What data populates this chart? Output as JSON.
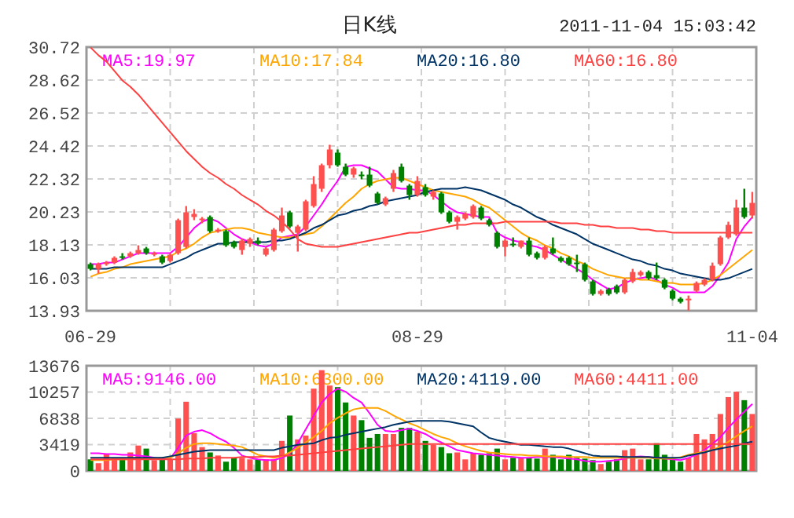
{
  "chart_data": [
    {
      "type": "candlestick",
      "title": "日K线",
      "subtitle": "2011-11-04 15:03:42",
      "categories": [
        "06-29",
        null,
        null,
        null,
        null,
        null,
        null,
        null,
        null,
        null,
        null,
        null,
        null,
        null,
        null,
        null,
        null,
        null,
        null,
        null,
        null,
        null,
        null,
        null,
        null,
        null,
        null,
        null,
        null,
        null,
        null,
        null,
        null,
        null,
        null,
        null,
        null,
        null,
        null,
        null,
        null,
        "08-29",
        null,
        null,
        null,
        null,
        null,
        null,
        null,
        null,
        null,
        null,
        null,
        null,
        null,
        null,
        null,
        null,
        null,
        null,
        null,
        null,
        null,
        null,
        null,
        null,
        null,
        null,
        null,
        null,
        null,
        null,
        null,
        null,
        null,
        null,
        null,
        null,
        null,
        null,
        null,
        null,
        null,
        "11-04"
      ],
      "ohlc": [
        [
          16.9,
          17.0,
          16.5,
          16.6
        ],
        [
          16.6,
          17.0,
          16.3,
          16.9
        ],
        [
          16.9,
          17.1,
          16.8,
          17.0
        ],
        [
          17.0,
          17.4,
          16.9,
          17.3
        ],
        [
          17.4,
          17.6,
          17.2,
          17.3
        ],
        [
          17.4,
          17.7,
          17.3,
          17.6
        ],
        [
          17.6,
          18.1,
          17.5,
          17.8
        ],
        [
          17.9,
          18.0,
          17.5,
          17.6
        ],
        [
          17.5,
          17.7,
          17.4,
          17.6
        ],
        [
          17.4,
          17.5,
          16.9,
          17.0
        ],
        [
          17.1,
          17.6,
          17.0,
          17.5
        ],
        [
          17.6,
          19.8,
          17.5,
          19.7
        ],
        [
          18.0,
          20.6,
          17.9,
          20.2
        ],
        [
          19.9,
          20.4,
          19.7,
          20.1
        ],
        [
          19.7,
          19.9,
          19.5,
          19.8
        ],
        [
          19.9,
          20.0,
          18.9,
          19.0
        ],
        [
          19.0,
          19.2,
          18.9,
          19.1
        ],
        [
          19.0,
          19.1,
          18.0,
          18.1
        ],
        [
          18.3,
          18.4,
          17.9,
          18.0
        ],
        [
          17.8,
          18.5,
          17.5,
          18.4
        ],
        [
          18.2,
          18.6,
          18.0,
          18.5
        ],
        [
          18.4,
          18.6,
          18.1,
          18.2
        ],
        [
          17.5,
          18.0,
          17.4,
          17.9
        ],
        [
          17.8,
          19.2,
          17.7,
          19.1
        ],
        [
          19.0,
          20.5,
          18.9,
          20.0
        ],
        [
          20.2,
          20.3,
          19.2,
          19.3
        ],
        [
          18.9,
          19.4,
          17.7,
          19.3
        ],
        [
          19.1,
          21.0,
          19.0,
          20.9
        ],
        [
          20.6,
          22.5,
          20.5,
          22.0
        ],
        [
          21.7,
          23.3,
          21.5,
          23.2
        ],
        [
          23.2,
          24.5,
          23.0,
          24.2
        ],
        [
          24.0,
          24.2,
          23.1,
          23.2
        ],
        [
          23.1,
          23.3,
          22.5,
          22.6
        ],
        [
          22.6,
          23.1,
          22.4,
          23.0
        ],
        [
          22.6,
          22.8,
          22.3,
          22.5
        ],
        [
          22.6,
          23.1,
          21.8,
          21.9
        ],
        [
          21.4,
          21.5,
          20.7,
          20.8
        ],
        [
          20.7,
          21.2,
          20.6,
          21.1
        ],
        [
          21.7,
          22.9,
          21.5,
          22.7
        ],
        [
          23.1,
          23.3,
          22.1,
          22.2
        ],
        [
          21.9,
          22.0,
          21.0,
          21.3
        ],
        [
          21.3,
          22.5,
          21.2,
          22.2
        ],
        [
          21.8,
          22.0,
          21.2,
          21.3
        ],
        [
          21.2,
          21.6,
          21.0,
          21.5
        ],
        [
          21.4,
          21.5,
          20.1,
          20.2
        ],
        [
          20.2,
          20.3,
          19.5,
          19.6
        ],
        [
          19.6,
          20.0,
          19.1,
          19.9
        ],
        [
          19.8,
          20.2,
          19.7,
          20.1
        ],
        [
          19.9,
          20.7,
          19.8,
          20.6
        ],
        [
          20.5,
          20.6,
          19.7,
          19.8
        ],
        [
          19.7,
          19.8,
          19.3,
          19.4
        ],
        [
          18.9,
          19.0,
          17.9,
          18.0
        ],
        [
          18.0,
          18.5,
          17.4,
          18.4
        ],
        [
          18.2,
          18.6,
          18.0,
          18.1
        ],
        [
          18.0,
          18.4,
          17.9,
          18.4
        ],
        [
          18.4,
          18.6,
          17.4,
          17.5
        ],
        [
          17.6,
          17.7,
          17.2,
          17.3
        ],
        [
          17.3,
          18.1,
          17.2,
          18.0
        ],
        [
          17.9,
          18.6,
          17.5,
          17.6
        ],
        [
          17.3,
          17.4,
          17.0,
          17.1
        ],
        [
          17.3,
          17.4,
          16.8,
          16.9
        ],
        [
          17.0,
          17.5,
          16.4,
          16.9
        ],
        [
          16.9,
          17.0,
          15.8,
          15.9
        ],
        [
          15.8,
          15.9,
          14.9,
          15.0
        ],
        [
          15.0,
          15.3,
          14.9,
          15.2
        ],
        [
          15.3,
          15.4,
          14.9,
          15.0
        ],
        [
          15.5,
          15.6,
          15.0,
          15.1
        ],
        [
          15.1,
          16.0,
          15.0,
          15.9
        ],
        [
          15.8,
          16.6,
          15.7,
          16.4
        ],
        [
          16.2,
          16.5,
          16.1,
          16.4
        ],
        [
          16.4,
          16.5,
          15.9,
          16.0
        ],
        [
          16.2,
          17.0,
          15.9,
          16.0
        ],
        [
          15.9,
          16.0,
          15.3,
          15.4
        ],
        [
          15.2,
          15.3,
          14.6,
          14.7
        ],
        [
          14.7,
          14.8,
          14.4,
          14.5
        ],
        [
          14.6,
          14.9,
          13.95,
          14.7
        ],
        [
          15.2,
          15.8,
          15.1,
          15.7
        ],
        [
          15.6,
          16.0,
          15.5,
          15.9
        ],
        [
          15.9,
          17.0,
          15.8,
          16.8
        ],
        [
          16.9,
          18.7,
          16.8,
          18.6
        ],
        [
          18.6,
          19.6,
          18.5,
          19.4
        ],
        [
          18.8,
          21.0,
          18.7,
          20.5
        ],
        [
          20.5,
          21.7,
          19.8,
          19.9
        ],
        [
          20.0,
          21.5,
          19.8,
          20.8
        ]
      ],
      "colors": [
        "#008000",
        "#ff5050",
        "#ff5050",
        "#ff5050",
        "#008000",
        "#ff5050",
        "#ff5050",
        "#008000",
        "#ff5050",
        "#008000",
        "#ff5050",
        "#ff5050",
        "#ff5050",
        "#ff5050",
        "#ff5050",
        "#008000",
        "#ff5050",
        "#008000",
        "#008000",
        "#ff5050",
        "#ff5050",
        "#008000",
        "#ff5050",
        "#ff5050",
        "#ff5050",
        "#008000",
        "#ff5050",
        "#ff5050",
        "#ff5050",
        "#ff5050",
        "#ff5050",
        "#008000",
        "#008000",
        "#ff5050",
        "#008000",
        "#008000",
        "#008000",
        "#ff5050",
        "#ff5050",
        "#008000",
        "#008000",
        "#ff5050",
        "#008000",
        "#ff5050",
        "#008000",
        "#008000",
        "#ff5050",
        "#ff5050",
        "#ff5050",
        "#008000",
        "#008000",
        "#008000",
        "#ff5050",
        "#008000",
        "#ff5050",
        "#008000",
        "#008000",
        "#ff5050",
        "#008000",
        "#008000",
        "#008000",
        "#008000",
        "#008000",
        "#008000",
        "#ff5050",
        "#008000",
        "#008000",
        "#ff5050",
        "#ff5050",
        "#ff5050",
        "#008000",
        "#008000",
        "#008000",
        "#008000",
        "#008000",
        "#ff5050",
        "#ff5050",
        "#ff5050",
        "#ff5050",
        "#ff5050",
        "#ff5050",
        "#ff5050",
        "#008000",
        "#ff5050"
      ],
      "series": [
        {
          "name": "MA5:19.97",
          "type": "line",
          "color": "#ff00ff",
          "values": [
            16.9,
            16.9,
            17.0,
            17.0,
            17.2,
            17.4,
            17.6,
            17.6,
            17.6,
            17.6,
            17.6,
            18.0,
            18.6,
            19.2,
            19.6,
            19.8,
            19.6,
            19.2,
            18.8,
            18.5,
            18.3,
            18.1,
            18.0,
            18.2,
            18.6,
            18.7,
            18.8,
            19.3,
            20.0,
            20.7,
            21.5,
            22.2,
            23.1,
            23.2,
            23.2,
            23.0,
            22.8,
            22.3,
            21.8,
            21.7,
            21.7,
            21.6,
            21.6,
            21.3,
            20.9,
            20.5,
            20.2,
            20.1,
            20.0,
            19.9,
            19.9,
            18.9,
            18.6,
            18.4,
            18.3,
            18.1,
            18.0,
            17.8,
            17.5,
            17.2,
            16.9,
            16.6,
            16.3,
            15.9,
            15.6,
            15.3,
            15.4,
            15.7,
            15.9,
            16.0,
            16.1,
            15.9,
            15.6,
            15.4,
            15.1,
            15.1,
            15.1,
            15.1,
            15.5,
            16.2,
            17.0,
            18.5,
            19.3,
            19.9
          ]
        },
        {
          "name": "MA10:17.84",
          "type": "line",
          "color": "#ffa500",
          "values": [
            16.1,
            16.3,
            16.4,
            16.6,
            16.7,
            16.9,
            17.0,
            17.1,
            17.2,
            17.3,
            17.4,
            17.7,
            17.9,
            18.2,
            18.6,
            18.9,
            19.0,
            19.1,
            19.2,
            19.2,
            19.1,
            18.9,
            18.8,
            18.7,
            18.6,
            18.6,
            18.7,
            18.8,
            18.9,
            19.3,
            19.8,
            20.3,
            20.8,
            21.2,
            21.7,
            22.0,
            22.2,
            22.3,
            22.4,
            22.4,
            22.2,
            22.0,
            21.8,
            21.6,
            21.5,
            21.4,
            21.3,
            21.2,
            21.0,
            20.7,
            20.5,
            20.1,
            19.7,
            19.3,
            18.9,
            18.6,
            18.4,
            18.1,
            17.9,
            17.6,
            17.4,
            17.1,
            16.9,
            16.6,
            16.4,
            16.2,
            16.1,
            16.0,
            16.0,
            15.9,
            15.9,
            15.8,
            15.7,
            15.7,
            15.6,
            15.6,
            15.6,
            15.7,
            15.9,
            16.2,
            16.6,
            17.0,
            17.4,
            17.8
          ]
        },
        {
          "name": "MA20:16.80",
          "type": "line",
          "color": "#003366",
          "values": [
            16.6,
            16.6,
            16.6,
            16.7,
            16.7,
            16.7,
            16.7,
            16.7,
            16.7,
            16.7,
            16.9,
            17.1,
            17.3,
            17.6,
            17.8,
            18.0,
            18.2,
            18.2,
            18.3,
            18.3,
            18.3,
            18.3,
            18.3,
            18.4,
            18.4,
            18.5,
            18.7,
            18.9,
            19.2,
            19.4,
            19.7,
            20.0,
            20.1,
            20.3,
            20.4,
            20.6,
            20.7,
            20.9,
            21.0,
            21.1,
            21.2,
            21.3,
            21.5,
            21.6,
            21.7,
            21.7,
            21.7,
            21.8,
            21.7,
            21.6,
            21.4,
            21.2,
            21.0,
            20.7,
            20.5,
            20.2,
            19.9,
            19.7,
            19.4,
            19.2,
            19.0,
            18.8,
            18.5,
            18.2,
            18.0,
            17.8,
            17.6,
            17.4,
            17.2,
            17.1,
            16.9,
            16.8,
            16.6,
            16.5,
            16.3,
            16.2,
            16.1,
            16.0,
            15.9,
            15.9,
            16.0,
            16.2,
            16.4,
            16.6
          ]
        },
        {
          "name": "MA60:16.80",
          "type": "line",
          "color": "#ff4040",
          "values": [
            30.7,
            30.2,
            29.8,
            29.2,
            28.6,
            28.2,
            27.7,
            27.1,
            26.5,
            25.9,
            25.3,
            24.7,
            24.1,
            23.6,
            23.1,
            22.7,
            22.4,
            22.0,
            21.7,
            21.3,
            21.0,
            20.7,
            20.3,
            20.0,
            19.6,
            19.1,
            18.5,
            18.2,
            18.1,
            18.0,
            18.0,
            18.0,
            18.1,
            18.2,
            18.3,
            18.4,
            18.5,
            18.6,
            18.7,
            18.8,
            18.9,
            18.9,
            19.0,
            19.1,
            19.2,
            19.3,
            19.4,
            19.4,
            19.5,
            19.5,
            19.5,
            19.5,
            19.6,
            19.6,
            19.6,
            19.6,
            19.6,
            19.6,
            19.6,
            19.5,
            19.5,
            19.5,
            19.4,
            19.4,
            19.3,
            19.3,
            19.2,
            19.2,
            19.2,
            19.1,
            19.1,
            19.0,
            19.0,
            18.9,
            18.9,
            18.9,
            18.9,
            18.9,
            18.9,
            18.9,
            18.9,
            18.9,
            18.9,
            18.9
          ]
        }
      ],
      "ylim": [
        13.93,
        30.72
      ],
      "yticks": [
        13.93,
        16.03,
        18.13,
        20.23,
        22.32,
        24.42,
        26.52,
        28.62,
        30.72
      ],
      "grid": true,
      "legend": "top"
    },
    {
      "type": "bar",
      "categories": [
        null,
        null,
        null,
        null,
        null,
        null,
        null,
        null,
        null,
        null,
        null,
        null,
        null,
        null,
        null,
        null,
        null,
        null,
        null,
        null,
        null,
        null,
        null,
        null,
        null,
        null,
        null,
        null,
        null,
        null,
        null,
        null,
        null,
        null,
        null,
        null,
        null,
        null,
        null,
        null,
        null,
        null,
        null,
        null,
        null,
        null,
        null,
        null,
        null,
        null,
        null,
        null,
        null,
        null,
        null,
        null,
        null,
        null,
        null,
        null,
        null,
        null,
        null,
        null,
        null,
        null,
        null,
        null,
        null,
        null,
        null,
        null,
        null,
        null,
        null,
        null,
        null,
        null,
        null,
        null,
        null,
        null,
        null,
        null
      ],
      "series": [
        {
          "type": "bar",
          "colors": [
            "#008000",
            "#ff5050",
            "#ff5050",
            "#ff5050",
            "#008000",
            "#ff5050",
            "#ff5050",
            "#008000",
            "#ff5050",
            "#008000",
            "#ff5050",
            "#ff5050",
            "#ff5050",
            "#ff5050",
            "#ff5050",
            "#008000",
            "#ff5050",
            "#008000",
            "#008000",
            "#ff5050",
            "#ff5050",
            "#008000",
            "#ff5050",
            "#ff5050",
            "#ff5050",
            "#008000",
            "#ff5050",
            "#ff5050",
            "#ff5050",
            "#ff5050",
            "#ff5050",
            "#008000",
            "#008000",
            "#ff5050",
            "#008000",
            "#008000",
            "#008000",
            "#ff5050",
            "#ff5050",
            "#008000",
            "#008000",
            "#ff5050",
            "#008000",
            "#ff5050",
            "#008000",
            "#008000",
            "#ff5050",
            "#ff5050",
            "#ff5050",
            "#008000",
            "#008000",
            "#008000",
            "#ff5050",
            "#008000",
            "#ff5050",
            "#008000",
            "#008000",
            "#ff5050",
            "#008000",
            "#008000",
            "#008000",
            "#008000",
            "#008000",
            "#008000",
            "#ff5050",
            "#008000",
            "#008000",
            "#ff5050",
            "#ff5050",
            "#ff5050",
            "#008000",
            "#008000",
            "#008000",
            "#008000",
            "#008000",
            "#ff5050",
            "#ff5050",
            "#ff5050",
            "#ff5050",
            "#ff5050",
            "#ff5050",
            "#ff5050",
            "#008000",
            "#ff5050"
          ],
          "values": [
            1500,
            1000,
            2200,
            1700,
            1700,
            2400,
            3300,
            2900,
            1400,
            1500,
            1500,
            6800,
            9000,
            4900,
            3100,
            2400,
            2000,
            1200,
            1700,
            1700,
            1500,
            1500,
            1500,
            1500,
            3900,
            7200,
            4100,
            4600,
            10700,
            13100,
            11100,
            10900,
            8900,
            7200,
            6600,
            4300,
            4800,
            4800,
            4800,
            5600,
            5600,
            5100,
            3900,
            3400,
            3100,
            2300,
            2400,
            1500,
            2300,
            2100,
            2300,
            2900,
            1500,
            1700,
            1700,
            1700,
            1600,
            2900,
            2100,
            1500,
            2100,
            1700,
            1600,
            1400,
            900,
            1200,
            1500,
            2700,
            2900,
            1500,
            1500,
            3600,
            2100,
            1500,
            1200,
            1700,
            4800,
            4100,
            4800,
            7400,
            9600,
            10300,
            9200,
            7400
          ]
        },
        {
          "name": "MA5:9146.00",
          "type": "line",
          "color": "#ff00ff",
          "values": [
            2300,
            2300,
            2200,
            2200,
            2100,
            2100,
            2000,
            1900,
            1700,
            1500,
            1600,
            3000,
            4600,
            5100,
            5300,
            4900,
            4300,
            3800,
            3000,
            2000,
            1700,
            1500,
            1400,
            1400,
            1700,
            2200,
            3600,
            5400,
            7200,
            8900,
            10000,
            10700,
            10300,
            9500,
            8900,
            7500,
            6000,
            5200,
            5100,
            5300,
            5500,
            5200,
            4800,
            4200,
            3700,
            3200,
            2700,
            2500,
            2300,
            2200,
            2100,
            2000,
            1900,
            1800,
            1700,
            1700,
            1800,
            1800,
            1800,
            1700,
            1600,
            1500,
            1300,
            1200,
            1200,
            1300,
            1400,
            1600,
            1800,
            1900,
            1800,
            1700,
            1600,
            1500,
            1400,
            1700,
            2100,
            2700,
            3500,
            4400,
            5600,
            6700,
            7700,
            8700
          ]
        },
        {
          "name": "MA10:6300.00",
          "type": "line",
          "color": "#ffa500",
          "values": [
            1400,
            1400,
            1400,
            1500,
            1500,
            1500,
            1600,
            1600,
            1600,
            1700,
            1700,
            2300,
            3000,
            3500,
            3600,
            3600,
            3500,
            3400,
            3300,
            3100,
            2600,
            2100,
            1900,
            1700,
            1900,
            2400,
            3000,
            3700,
            4400,
            5200,
            6200,
            6900,
            7500,
            8000,
            8200,
            8200,
            8200,
            7800,
            7200,
            6700,
            6200,
            5800,
            5300,
            4800,
            4400,
            4100,
            3600,
            3200,
            2900,
            2600,
            2400,
            2300,
            2200,
            2100,
            2100,
            2000,
            2000,
            1900,
            1900,
            1900,
            1800,
            1800,
            1800,
            1700,
            1700,
            1700,
            1700,
            1700,
            1700,
            1700,
            1700,
            1600,
            1600,
            1600,
            1800,
            2100,
            2300,
            2500,
            2700,
            3200,
            3800,
            4500,
            5200,
            5800
          ]
        },
        {
          "name": "MA20:4119.00",
          "type": "line",
          "color": "#003366",
          "values": [
            1700,
            1700,
            1700,
            1700,
            1700,
            1700,
            1700,
            1700,
            1700,
            1700,
            1900,
            2100,
            2300,
            2500,
            2600,
            2700,
            2700,
            2700,
            2700,
            2700,
            2700,
            2700,
            2700,
            2700,
            3000,
            3200,
            3400,
            3500,
            3600,
            4000,
            4300,
            4400,
            4700,
            4900,
            5100,
            5300,
            5500,
            5700,
            6000,
            6200,
            6400,
            6500,
            6500,
            6500,
            6500,
            6400,
            6200,
            6000,
            5800,
            5000,
            4300,
            4000,
            3800,
            3600,
            3400,
            3400,
            3300,
            3200,
            3100,
            3100,
            2900,
            2600,
            2300,
            2000,
            1900,
            1900,
            1900,
            1800,
            1800,
            1800,
            1800,
            1700,
            1700,
            1700,
            1700,
            2000,
            2200,
            2400,
            2700,
            2900,
            3100,
            3300,
            3600,
            3800
          ]
        },
        {
          "name": "MA60:4411.00",
          "type": "line",
          "color": "#ff4040",
          "values": [
            1500,
            1500,
            1500,
            1500,
            1500,
            1500,
            1500,
            1500,
            1500,
            1500,
            1500,
            1500,
            1600,
            1600,
            1600,
            1700,
            1700,
            1700,
            1700,
            1800,
            1800,
            1800,
            1900,
            1900,
            2000,
            2000,
            2100,
            2200,
            2300,
            2400,
            2500,
            2600,
            2700,
            2800,
            2900,
            3000,
            3100,
            3200,
            3300,
            3400,
            3500,
            3500,
            3500,
            3500,
            3500,
            3500,
            3500,
            3500,
            3500,
            3500,
            3500,
            3500,
            3500,
            3500,
            3500,
            3500,
            3500,
            3500,
            3500,
            3500,
            3500,
            3500,
            3500,
            3500,
            3500,
            3500,
            3500,
            3500,
            3500,
            3500,
            3500,
            3500,
            3500,
            3500,
            3500,
            3500,
            3500,
            3500,
            3500,
            3500,
            3500,
            3500,
            3500,
            3500
          ]
        }
      ],
      "ylim": [
        0,
        13676
      ],
      "yticks": [
        0,
        3419,
        6838,
        10257,
        13676
      ],
      "grid": true,
      "legend": "top"
    }
  ]
}
